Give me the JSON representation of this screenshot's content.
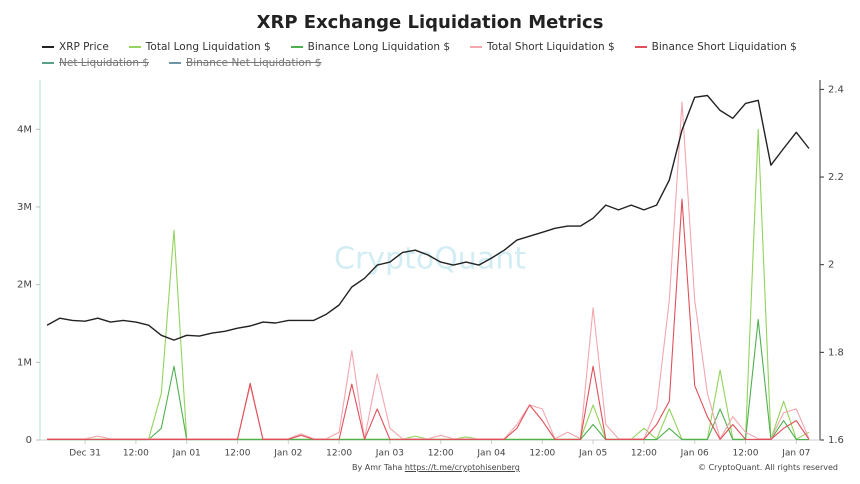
{
  "chart_data": {
    "type": "line",
    "title": "XRP Exchange Liquidation Metrics",
    "watermark": "CryptoQuant",
    "credit": "By Amr Taha",
    "credit_link": "https://t.me/cryptohisenberg",
    "copyright": "© CryptoQuant. All rights reserved",
    "categories": [
      "Dec 30 15:00",
      "Dec 30 18:00",
      "Dec 30 21:00",
      "Dec 31 00:00",
      "Dec 31 03:00",
      "Dec 31 06:00",
      "Dec 31 09:00",
      "Dec 31 12:00",
      "Dec 31 15:00",
      "Dec 31 18:00",
      "Dec 31 21:00",
      "Jan 01 00:00",
      "Jan 01 03:00",
      "Jan 01 06:00",
      "Jan 01 09:00",
      "Jan 01 12:00",
      "Jan 01 15:00",
      "Jan 01 18:00",
      "Jan 01 21:00",
      "Jan 02 00:00",
      "Jan 02 03:00",
      "Jan 02 06:00",
      "Jan 02 09:00",
      "Jan 02 12:00",
      "Jan 02 15:00",
      "Jan 02 18:00",
      "Jan 02 21:00",
      "Jan 03 00:00",
      "Jan 03 03:00",
      "Jan 03 06:00",
      "Jan 03 09:00",
      "Jan 03 12:00",
      "Jan 03 15:00",
      "Jan 03 18:00",
      "Jan 03 21:00",
      "Jan 04 00:00",
      "Jan 04 03:00",
      "Jan 04 06:00",
      "Jan 04 09:00",
      "Jan 04 12:00",
      "Jan 04 15:00",
      "Jan 04 18:00",
      "Jan 04 21:00",
      "Jan 05 00:00",
      "Jan 05 03:00",
      "Jan 05 06:00",
      "Jan 05 09:00",
      "Jan 05 12:00",
      "Jan 05 15:00",
      "Jan 05 18:00",
      "Jan 05 21:00",
      "Jan 06 00:00",
      "Jan 06 03:00",
      "Jan 06 06:00",
      "Jan 06 09:00",
      "Jan 06 12:00",
      "Jan 06 15:00",
      "Jan 06 18:00",
      "Jan 06 21:00",
      "Jan 07 00:00",
      "Jan 07 03:00"
    ],
    "xticks": [
      {
        "value": "Dec 31 00:00",
        "label": "Dec 31"
      },
      {
        "value": "Dec 31 12:00",
        "label": "12:00"
      },
      {
        "value": "Jan 01 00:00",
        "label": "Jan 01"
      },
      {
        "value": "Jan 01 12:00",
        "label": "12:00"
      },
      {
        "value": "Jan 02 00:00",
        "label": "Jan 02"
      },
      {
        "value": "Jan 02 12:00",
        "label": "12:00"
      },
      {
        "value": "Jan 03 00:00",
        "label": "Jan 03"
      },
      {
        "value": "Jan 03 12:00",
        "label": "12:00"
      },
      {
        "value": "Jan 04 00:00",
        "label": "Jan 04"
      },
      {
        "value": "Jan 04 12:00",
        "label": "12:00"
      },
      {
        "value": "Jan 05 00:00",
        "label": "Jan 05"
      },
      {
        "value": "Jan 05 12:00",
        "label": "12:00"
      },
      {
        "value": "Jan 06 00:00",
        "label": "Jan 06"
      },
      {
        "value": "Jan 06 12:00",
        "label": "12:00"
      },
      {
        "value": "Jan 07 00:00",
        "label": "Jan 07"
      }
    ],
    "ylim": [
      0,
      4570000
    ],
    "yticks": [
      {
        "value": 0,
        "label": "0"
      },
      {
        "value": 1000000,
        "label": "1M"
      },
      {
        "value": 2000000,
        "label": "2M"
      },
      {
        "value": 3000000,
        "label": "3M"
      },
      {
        "value": 4000000,
        "label": "4M"
      }
    ],
    "y2lim": [
      1.6,
      2.41
    ],
    "y2ticks": [
      1.6,
      1.8,
      2,
      2.2,
      2.4
    ],
    "series": [
      {
        "name": "XRP Price",
        "color": "#222222",
        "axis": "y2",
        "values": [
          1.862,
          1.878,
          1.873,
          1.871,
          1.878,
          1.869,
          1.873,
          1.869,
          1.862,
          1.839,
          1.828,
          1.839,
          1.837,
          1.844,
          1.848,
          1.855,
          1.86,
          1.869,
          1.867,
          1.873,
          1.873,
          1.873,
          1.887,
          1.908,
          1.949,
          1.969,
          1.999,
          2.006,
          2.028,
          2.033,
          2.022,
          2.006,
          1.999,
          2.006,
          1.999,
          2.015,
          2.033,
          2.056,
          2.065,
          2.074,
          2.083,
          2.088,
          2.088,
          2.106,
          2.136,
          2.125,
          2.136,
          2.125,
          2.136,
          2.193,
          2.307,
          2.382,
          2.386,
          2.352,
          2.334,
          2.368,
          2.375,
          2.227,
          2.265,
          2.302,
          2.265
        ]
      },
      {
        "name": "Total Long Liquidation $",
        "color": "#93d35e",
        "values": [
          10000,
          10000,
          10000,
          10000,
          10000,
          10000,
          10000,
          10000,
          10000,
          600000,
          2700000,
          10000,
          10000,
          10000,
          10000,
          10000,
          10000,
          10000,
          10000,
          10000,
          10000,
          10000,
          10000,
          10000,
          10000,
          10000,
          10000,
          10000,
          10000,
          50000,
          10000,
          10000,
          10000,
          40000,
          10000,
          10000,
          10000,
          10000,
          10000,
          10000,
          10000,
          10000,
          10000,
          450000,
          10000,
          10000,
          10000,
          150000,
          10000,
          400000,
          10000,
          10000,
          10000,
          900000,
          10000,
          10000,
          4000000,
          10000,
          500000,
          10000,
          100000
        ]
      },
      {
        "name": "Binance Long Liquidation $",
        "color": "#4fb04f",
        "values": [
          5000,
          5000,
          5000,
          5000,
          5000,
          5000,
          5000,
          5000,
          5000,
          150000,
          950000,
          5000,
          5000,
          5000,
          5000,
          5000,
          5000,
          5000,
          5000,
          5000,
          5000,
          5000,
          5000,
          5000,
          5000,
          5000,
          5000,
          5000,
          5000,
          5000,
          5000,
          5000,
          5000,
          5000,
          5000,
          5000,
          5000,
          5000,
          5000,
          5000,
          5000,
          5000,
          5000,
          200000,
          5000,
          5000,
          5000,
          5000,
          5000,
          150000,
          5000,
          5000,
          5000,
          400000,
          5000,
          5000,
          1550000,
          5000,
          250000,
          5000,
          5000
        ]
      },
      {
        "name": "Total Short Liquidation $",
        "color": "#f2a7ae",
        "values": [
          15000,
          15000,
          15000,
          15000,
          50000,
          15000,
          15000,
          15000,
          15000,
          15000,
          15000,
          15000,
          15000,
          15000,
          15000,
          15000,
          700000,
          15000,
          15000,
          15000,
          80000,
          15000,
          15000,
          100000,
          1150000,
          15000,
          850000,
          150000,
          15000,
          15000,
          15000,
          60000,
          15000,
          15000,
          15000,
          15000,
          15000,
          200000,
          450000,
          400000,
          15000,
          100000,
          15000,
          1700000,
          200000,
          15000,
          15000,
          15000,
          400000,
          1800000,
          4350000,
          1800000,
          600000,
          15000,
          300000,
          100000,
          15000,
          15000,
          350000,
          400000,
          15000
        ]
      },
      {
        "name": "Binance Short Liquidation $",
        "color": "#e0505a",
        "values": [
          8000,
          8000,
          8000,
          8000,
          8000,
          8000,
          8000,
          8000,
          8000,
          8000,
          8000,
          8000,
          8000,
          8000,
          8000,
          8000,
          730000,
          8000,
          8000,
          8000,
          60000,
          8000,
          8000,
          8000,
          720000,
          8000,
          400000,
          8000,
          8000,
          8000,
          8000,
          8000,
          8000,
          8000,
          8000,
          8000,
          8000,
          150000,
          450000,
          250000,
          8000,
          8000,
          8000,
          950000,
          8000,
          8000,
          8000,
          8000,
          200000,
          500000,
          3100000,
          700000,
          300000,
          8000,
          200000,
          8000,
          8000,
          8000,
          150000,
          250000,
          8000
        ]
      },
      {
        "name": "Net Liquidation $",
        "color": "#5a9e8c",
        "hidden": true
      },
      {
        "name": "Binance Net Liquidation $",
        "color": "#6f94a8",
        "hidden": true
      }
    ]
  }
}
